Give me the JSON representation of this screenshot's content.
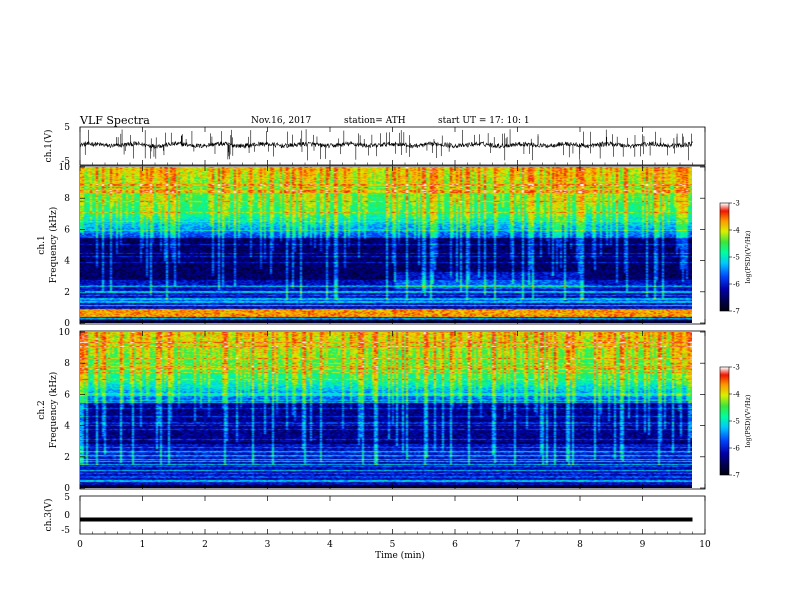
{
  "header": {
    "title": "VLF  Spectra",
    "date": "Nov.16, 2017",
    "station": "station= ATH",
    "start": "start  UT  =    17: 10: 1"
  },
  "chart_data": [
    {
      "type": "line",
      "panel": "ch1-waveform",
      "ylabel": "ch.1(V)",
      "yticks": [
        "5",
        "-5"
      ],
      "ylim": [
        -5,
        5
      ],
      "xlim": [
        0,
        10
      ],
      "trace_extent_min": [
        0,
        9.8
      ],
      "baseline_v": 0.3,
      "noise_v": 0.6,
      "spike_count": 140
    },
    {
      "type": "heatmap",
      "panel": "ch1-spectrogram",
      "ylabel": "ch.1\nFrequency (kHz)",
      "yticks": [
        "0",
        "2",
        "4",
        "6",
        "8",
        "10"
      ],
      "ylim": [
        0,
        10
      ],
      "xlim": [
        0,
        10
      ],
      "data_extent_min": [
        0,
        9.8
      ],
      "colorbar": {
        "label": "log(PSD)(V²/Hz)",
        "ticks": [
          "-3",
          "-4",
          "-5",
          "-6",
          "-7"
        ],
        "range": [
          -7,
          -3
        ]
      }
    },
    {
      "type": "heatmap",
      "panel": "ch2-spectrogram",
      "ylabel": "ch.2\nFrequency (kHz)",
      "yticks": [
        "0",
        "2",
        "4",
        "6",
        "8",
        "10"
      ],
      "ylim": [
        0,
        10
      ],
      "xlim": [
        0,
        10
      ],
      "data_extent_min": [
        0,
        9.8
      ],
      "colorbar": {
        "label": "log(PSD)(V²/Hz)",
        "ticks": [
          "-3",
          "-4",
          "-5",
          "-6",
          "-7"
        ],
        "range": [
          -7,
          -3
        ]
      }
    },
    {
      "type": "line",
      "panel": "ch3-waveform",
      "ylabel": "ch.3(V)",
      "yticks": [
        "5",
        "0",
        "-5"
      ],
      "ylim": [
        -5,
        5
      ],
      "xlim": [
        0,
        10
      ],
      "trace_extent_min": [
        0,
        9.8
      ],
      "level_v": -1.2,
      "xlabel": "Time  (min)",
      "xticks": [
        "0",
        "1",
        "2",
        "3",
        "4",
        "5",
        "6",
        "7",
        "8",
        "9",
        "10"
      ]
    }
  ]
}
